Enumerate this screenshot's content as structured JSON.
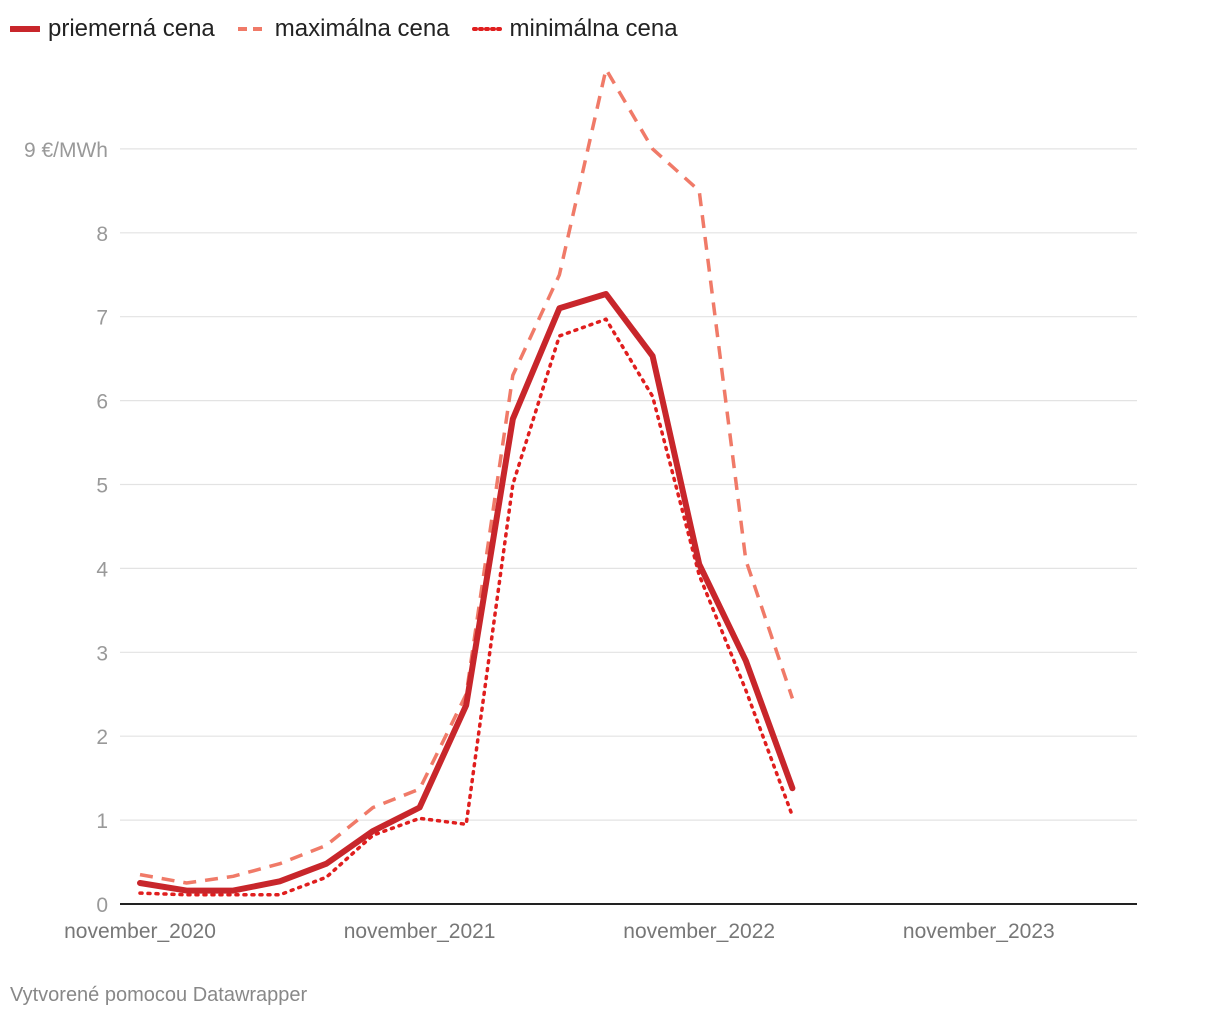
{
  "chart_data": {
    "type": "line",
    "title": "",
    "xlabel": "",
    "ylabel": "",
    "y_unit": "€/MWh",
    "ylim": [
      0,
      10
    ],
    "yticks": [
      0,
      1,
      2,
      3,
      4,
      5,
      6,
      7,
      8,
      9
    ],
    "ytick_labels": [
      "0",
      "1",
      "2",
      "3",
      "4",
      "5",
      "6",
      "7",
      "8",
      "9 €/MWh"
    ],
    "x": [
      "2020-11",
      "2021-01",
      "2021-03",
      "2021-05",
      "2021-07",
      "2021-09",
      "2021-11",
      "2022-01",
      "2022-03",
      "2022-05",
      "2022-07",
      "2022-09",
      "2022-11",
      "2023-01",
      "2023-03",
      "2023-05",
      "2023-07"
    ],
    "xtick_labels": [
      {
        "x": "2020-11",
        "label": "november_2020"
      },
      {
        "x": "2021-11",
        "label": "november_2021"
      },
      {
        "x": "2022-11",
        "label": "november_2022"
      },
      {
        "x": "2023-11",
        "label": "november_2023"
      }
    ],
    "grid": true,
    "legend_position": "top-left",
    "series": [
      {
        "name": "priemerná cena",
        "style": "solid",
        "color": "#c8262b",
        "values": [
          0.25,
          0.16,
          0.16,
          0.27,
          0.48,
          0.87,
          1.15,
          2.37,
          5.78,
          7.1,
          7.27,
          6.53,
          4.05,
          2.9,
          1.38,
          null,
          null
        ]
      },
      {
        "name": "maximálna cena",
        "style": "dashed",
        "color": "#f07a68",
        "values": [
          0.35,
          0.25,
          0.33,
          0.48,
          0.7,
          1.15,
          1.37,
          2.5,
          6.3,
          7.5,
          9.95,
          9.0,
          8.5,
          4.1,
          2.45,
          null,
          null
        ]
      },
      {
        "name": "minimálna cena",
        "style": "dotted",
        "color": "#e01e1e",
        "values": [
          0.13,
          0.11,
          0.11,
          0.11,
          0.32,
          0.82,
          1.02,
          0.95,
          5.0,
          6.77,
          6.97,
          6.05,
          3.92,
          2.55,
          1.05,
          null,
          null
        ]
      }
    ]
  },
  "footer": {
    "credit": "Vytvorené pomocou Datawrapper"
  }
}
